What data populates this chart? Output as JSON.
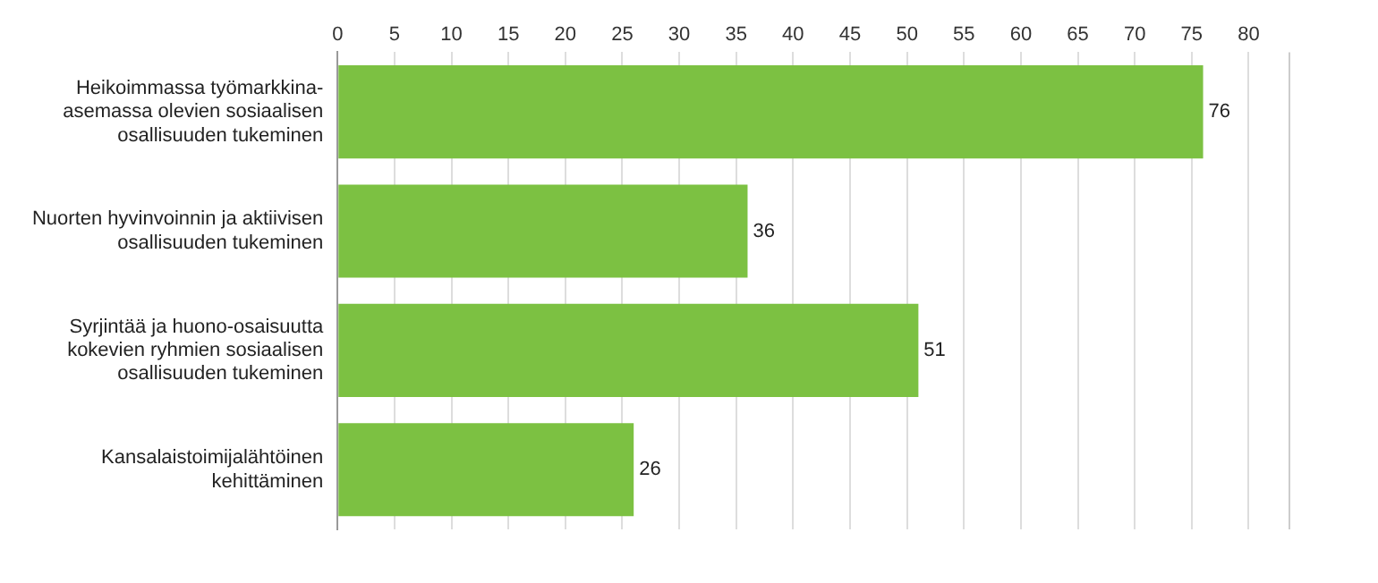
{
  "chart_data": {
    "type": "bar",
    "orientation": "horizontal",
    "categories": [
      "Heikoimmassa työmarkkina-asemassa olevien sosiaalisen osallisuuden tukeminen",
      "Nuorten hyvinvoinnin ja aktiivisen osallisuuden tukeminen",
      "Syrjintää ja huono-osaisuutta kokevien ryhmien sosiaalisen osallisuuden tukeminen",
      "Kansalaistoimijalähtöinen kehittäminen"
    ],
    "values": [
      76,
      36,
      51,
      26
    ],
    "color": "#7cc142",
    "xlim": [
      0,
      83.5
    ],
    "xticks": [
      0,
      5,
      10,
      15,
      20,
      25,
      30,
      35,
      40,
      45,
      50,
      55,
      60,
      65,
      70,
      75,
      80
    ],
    "grid": "x",
    "data_labels": true,
    "legend": false
  }
}
